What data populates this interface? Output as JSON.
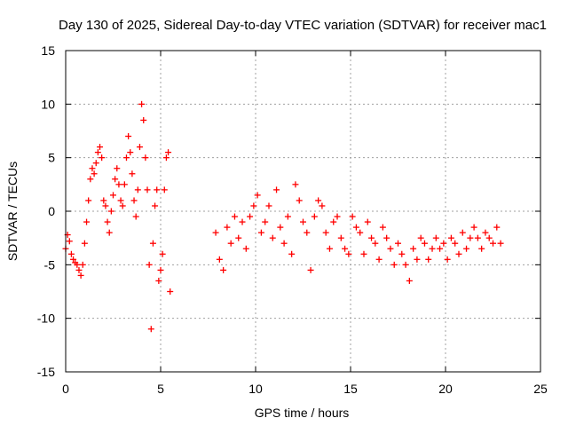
{
  "chart_data": {
    "type": "scatter",
    "title": "Day 130 of 2025, Sidereal Day-to-day VTEC variation (SDTVAR) for receiver mac1",
    "xlabel": "GPS time / hours",
    "ylabel": "SDTVAR / TECUs",
    "xlim": [
      0,
      25
    ],
    "ylim": [
      -15,
      15
    ],
    "xticks": [
      0,
      5,
      10,
      15,
      20,
      25
    ],
    "yticks": [
      -15,
      -10,
      -5,
      0,
      5,
      10,
      15
    ],
    "grid": true,
    "marker": "+",
    "series": [
      {
        "name": "SDTVAR",
        "color": "#ff0000",
        "x": [
          0.0,
          0.1,
          0.2,
          0.3,
          0.4,
          0.5,
          0.6,
          0.7,
          0.8,
          0.9,
          1.0,
          1.1,
          1.2,
          1.3,
          1.4,
          1.5,
          1.6,
          1.7,
          1.8,
          1.9,
          2.0,
          2.1,
          2.2,
          2.3,
          2.4,
          2.5,
          2.6,
          2.7,
          2.8,
          2.9,
          3.0,
          3.1,
          3.2,
          3.3,
          3.4,
          3.5,
          3.6,
          3.7,
          3.8,
          3.9,
          4.0,
          4.1,
          4.2,
          4.3,
          4.4,
          4.5,
          4.6,
          4.7,
          4.8,
          4.9,
          5.0,
          5.1,
          5.2,
          5.3,
          5.4,
          5.5,
          7.9,
          8.1,
          8.3,
          8.5,
          8.7,
          8.9,
          9.1,
          9.3,
          9.5,
          9.7,
          9.9,
          10.1,
          10.3,
          10.5,
          10.7,
          10.9,
          11.1,
          11.3,
          11.5,
          11.7,
          11.9,
          12.1,
          12.3,
          12.5,
          12.7,
          12.9,
          13.1,
          13.3,
          13.5,
          13.7,
          13.9,
          14.1,
          14.3,
          14.5,
          14.7,
          14.9,
          15.1,
          15.3,
          15.5,
          15.7,
          15.9,
          16.1,
          16.3,
          16.5,
          16.7,
          16.9,
          17.1,
          17.3,
          17.5,
          17.7,
          17.9,
          18.1,
          18.3,
          18.5,
          18.7,
          18.9,
          19.1,
          19.3,
          19.5,
          19.7,
          19.9,
          20.1,
          20.3,
          20.5,
          20.7,
          20.9,
          21.1,
          21.3,
          21.5,
          21.7,
          21.9,
          22.1,
          22.3,
          22.5,
          22.7,
          22.9
        ],
        "y": [
          -3.5,
          -2.2,
          -2.8,
          -4.0,
          -4.5,
          -4.8,
          -5.0,
          -5.5,
          -6.0,
          -5.0,
          -3.0,
          -1.0,
          1.0,
          3.0,
          4.0,
          3.5,
          4.5,
          5.5,
          6.0,
          5.0,
          1.0,
          0.5,
          -1.0,
          -2.0,
          0.0,
          1.5,
          3.0,
          4.0,
          2.5,
          1.0,
          0.5,
          2.5,
          5.0,
          7.0,
          5.5,
          3.5,
          1.0,
          -0.5,
          2.0,
          6.0,
          10.0,
          8.5,
          5.0,
          2.0,
          -5.0,
          -11.0,
          -3.0,
          0.5,
          2.0,
          -6.5,
          -5.5,
          -4.0,
          2.0,
          5.0,
          5.5,
          -7.5,
          -2.0,
          -4.5,
          -5.5,
          -1.5,
          -3.0,
          -0.5,
          -2.5,
          -1.0,
          -3.5,
          -0.5,
          0.5,
          1.5,
          -2.0,
          -1.0,
          0.5,
          -2.5,
          2.0,
          -1.5,
          -3.0,
          -0.5,
          -4.0,
          2.5,
          1.0,
          -1.0,
          -2.0,
          -5.5,
          -0.5,
          1.0,
          0.5,
          -2.0,
          -3.5,
          -1.0,
          -0.5,
          -2.5,
          -3.5,
          -4.0,
          -0.5,
          -1.5,
          -2.0,
          -4.0,
          -1.0,
          -2.5,
          -3.0,
          -4.5,
          -1.5,
          -2.5,
          -3.5,
          -5.0,
          -3.0,
          -4.0,
          -5.0,
          -6.5,
          -3.5,
          -4.5,
          -2.5,
          -3.0,
          -4.5,
          -3.5,
          -2.5,
          -3.5,
          -3.0,
          -4.5,
          -2.5,
          -3.0,
          -4.0,
          -2.0,
          -3.5,
          -2.5,
          -1.5,
          -2.5,
          -3.5,
          -2.0,
          -2.5,
          -3.0,
          -1.5,
          -3.0
        ]
      }
    ]
  }
}
